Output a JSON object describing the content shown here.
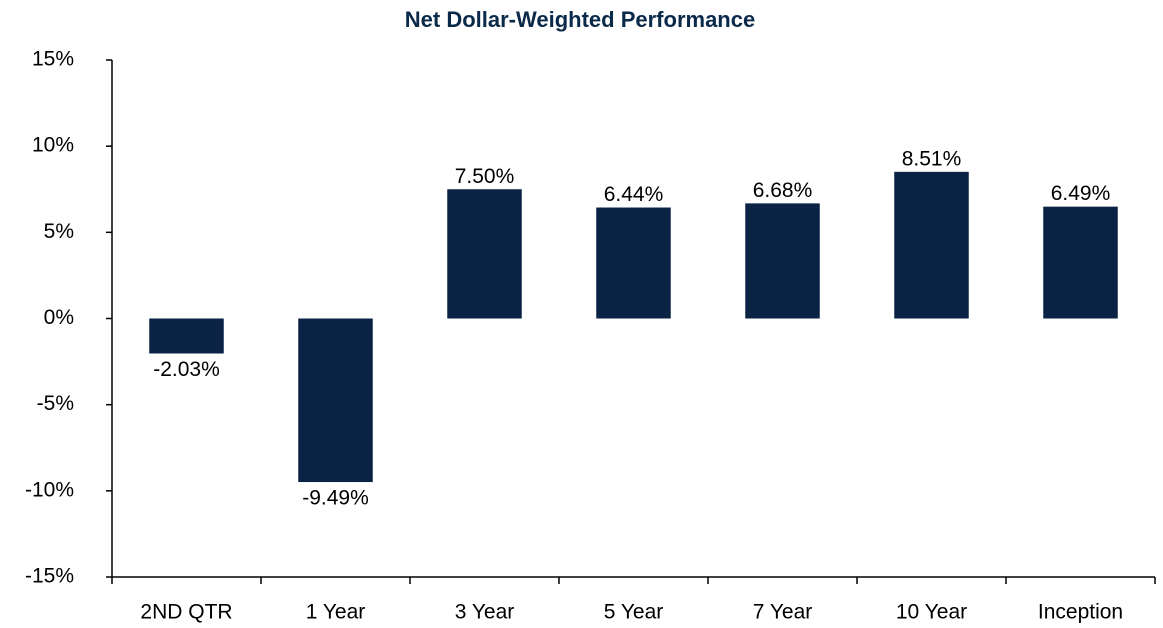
{
  "chart_data": {
    "type": "bar",
    "title": "Net Dollar-Weighted Performance",
    "categories": [
      "2ND QTR",
      "1 Year",
      "3 Year",
      "5 Year",
      "7 Year",
      "10 Year",
      "Inception"
    ],
    "values": [
      -2.03,
      -9.49,
      7.5,
      6.44,
      6.68,
      8.51,
      6.49
    ],
    "value_labels": [
      "-2.03%",
      "-9.49%",
      "7.50%",
      "6.44%",
      "6.68%",
      "8.51%",
      "6.49%"
    ],
    "color": "#0a2244",
    "ylim": [
      -15,
      15
    ],
    "yticks": [
      {
        "value": -15,
        "label": "-15%"
      },
      {
        "value": -10,
        "label": "-10%"
      },
      {
        "value": -5,
        "label": "-5%"
      },
      {
        "value": 0,
        "label": "0%"
      },
      {
        "value": 5,
        "label": "5%"
      },
      {
        "value": 10,
        "label": "10%"
      },
      {
        "value": 15,
        "label": "15%"
      }
    ],
    "grid": false
  }
}
